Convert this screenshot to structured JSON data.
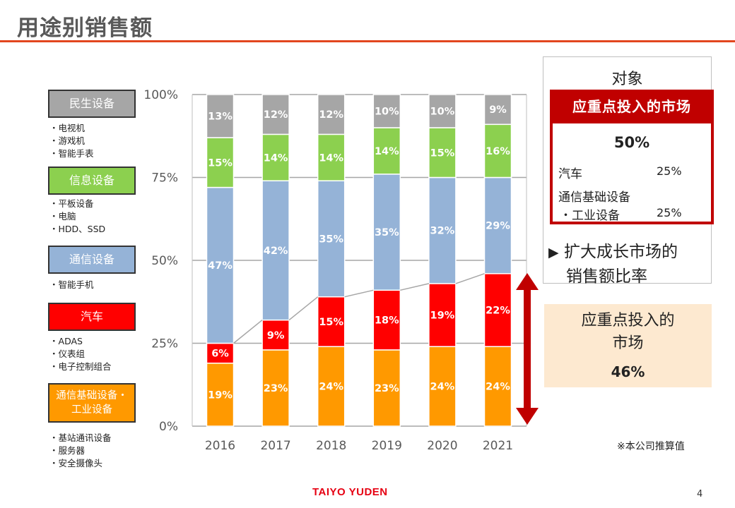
{
  "header": {
    "title": "用途别销售额"
  },
  "legend": [
    {
      "label": "民生设备",
      "color": "#a6a6a6",
      "items": [
        "电视机",
        "游戏机",
        "智能手表"
      ]
    },
    {
      "label": "信息设备",
      "color": "#8cd04f",
      "items": [
        "平板设备",
        "电脑",
        "HDD、SSD"
      ]
    },
    {
      "label": "通信设备",
      "color": "#95b3d7",
      "items": [
        "智能手机"
      ]
    },
    {
      "label": "汽车",
      "color": "#ff0000",
      "items": [
        "ADAS",
        "仪表组",
        "电子控制组合"
      ]
    },
    {
      "label": "通信基础设备・\n工业设备",
      "label_line1": "通信基础设备・",
      "label_line2": "工业设备",
      "color": "#ff9900",
      "items": [
        "基站通讯设备",
        "服务器",
        "安全摄像头"
      ]
    }
  ],
  "chart_data": {
    "type": "bar",
    "stacked": true,
    "categories": [
      "2016",
      "2017",
      "2018",
      "2019",
      "2020",
      "2021"
    ],
    "ylim": [
      0,
      100
    ],
    "yticks": [
      "0%",
      "25%",
      "50%",
      "75%",
      "100%"
    ],
    "grid": true,
    "series": [
      {
        "name": "通信基础设备・工业设备",
        "color": "#ff9900",
        "values": [
          19,
          23,
          24,
          23,
          24,
          24
        ],
        "labels": [
          "19%",
          "23%",
          "24%",
          "23%",
          "24%",
          "24%"
        ]
      },
      {
        "name": "汽车",
        "color": "#ff0000",
        "values": [
          6,
          9,
          15,
          18,
          19,
          22
        ],
        "labels": [
          "6%",
          "9%",
          "15%",
          "18%",
          "19%",
          "22%"
        ]
      },
      {
        "name": "通信设备",
        "color": "#95b3d7",
        "values": [
          47,
          42,
          35,
          35,
          32,
          29
        ],
        "labels": [
          "47%",
          "42%",
          "35%",
          "35%",
          "32%",
          "29%"
        ]
      },
      {
        "name": "信息设备",
        "color": "#8cd04f",
        "values": [
          15,
          14,
          14,
          14,
          15,
          16
        ],
        "labels": [
          "15%",
          "14%",
          "14%",
          "14%",
          "15%",
          "16%"
        ]
      },
      {
        "name": "民生设备",
        "color": "#a6a6a6",
        "values": [
          13,
          12,
          12,
          10,
          10,
          9
        ],
        "labels": [
          "13%",
          "12%",
          "12%",
          "10%",
          "10%",
          "9%"
        ]
      }
    ],
    "connector_series_top": "汽车",
    "arrow_color": "#c00000"
  },
  "panel": {
    "title": "对象",
    "focus_header": "应重点投入的市场",
    "focus_pct": "50%",
    "rows": [
      {
        "label": "汽车",
        "value": "25%"
      },
      {
        "label_line1": "通信基础设备",
        "label_line2": "・工业设备",
        "value": "25%"
      }
    ],
    "growth_marker": "▶",
    "growth_line1": "扩大成长市场的",
    "growth_line2": "销售额比率"
  },
  "focus_box": {
    "title_line1": "应重点投入的",
    "title_line2": "市场",
    "pct": "46%"
  },
  "note": "※本公司推算值",
  "footer": {
    "logo": "TAIYO YUDEN",
    "page": "4"
  }
}
